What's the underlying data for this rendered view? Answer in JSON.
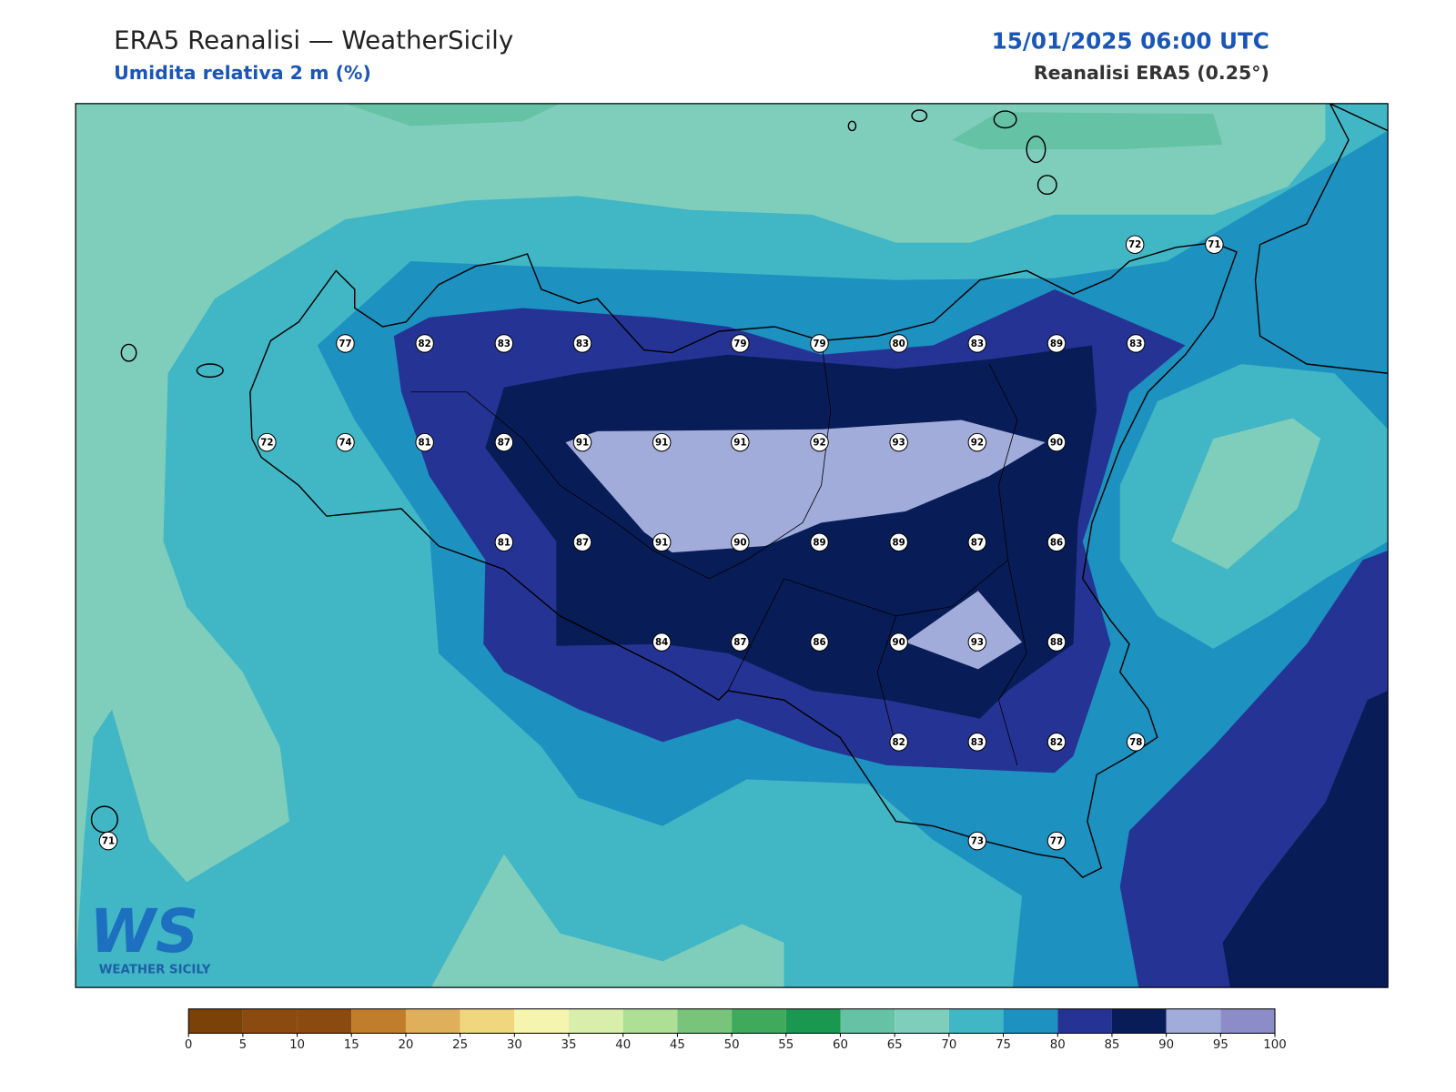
{
  "header": {
    "title": "ERA5 Reanalisi — WeatherSicily",
    "subtitle": "Umidita relativa 2 m (%)",
    "datetime": "15/01/2025 06:00 UTC",
    "source": "Reanalisi ERA5 (0.25°)"
  },
  "labels": {
    "values": [
      72,
      71,
      77,
      82,
      83,
      83,
      79,
      79,
      80,
      83,
      89,
      83,
      72,
      74,
      81,
      87,
      91,
      91,
      91,
      92,
      93,
      92,
      90,
      81,
      87,
      91,
      90,
      89,
      89,
      87,
      86,
      84,
      87,
      86,
      90,
      93,
      88,
      82,
      83,
      82,
      78,
      71,
      73,
      77
    ]
  },
  "colorbar": {
    "ticks": [
      0,
      5,
      10,
      15,
      20,
      25,
      30,
      35,
      40,
      45,
      50,
      55,
      60,
      65,
      70,
      75,
      80,
      85,
      90,
      95,
      100
    ],
    "colors": [
      "#7a4108",
      "#8b4a10",
      "#8b4a10",
      "#c07e2d",
      "#e0af5c",
      "#f0d77e",
      "#f6f5b0",
      "#d9eeaa",
      "#addf95",
      "#78c47a",
      "#3fa95c",
      "#1a9850",
      "#66c2a4",
      "#7fcdbb",
      "#41b6c4",
      "#1d91c0",
      "#253494",
      "#081d58",
      "#a2acdb",
      "#8c8cc8"
    ]
  },
  "logo": {
    "mark": "WS",
    "name": "WEATHER SICILY"
  }
}
